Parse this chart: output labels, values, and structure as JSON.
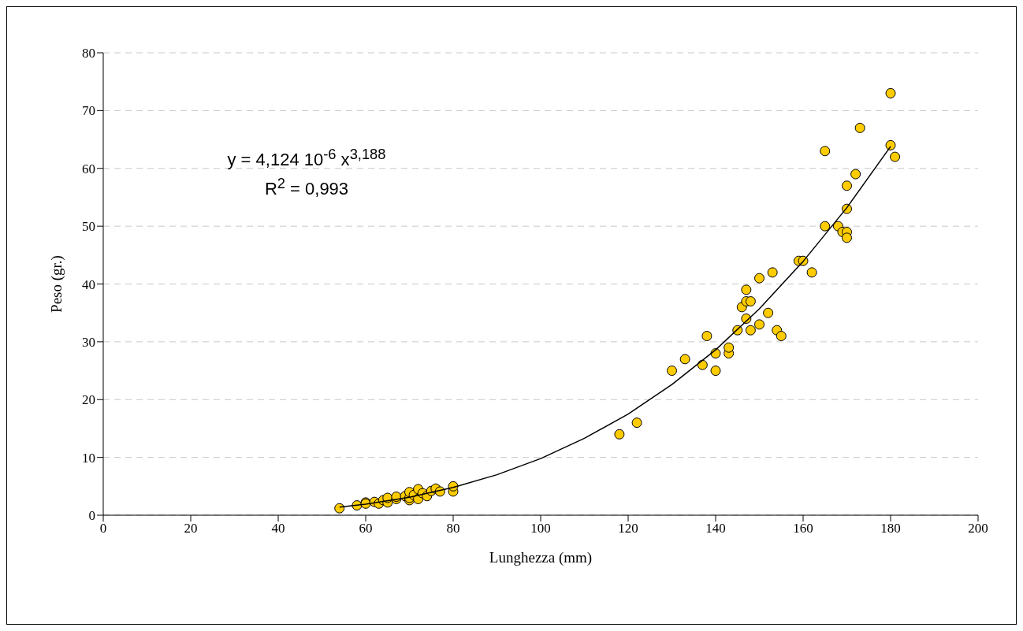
{
  "chart_data": {
    "type": "scatter",
    "xlabel": "Lunghezza (mm)",
    "ylabel": "Peso (gr.)",
    "xlim": [
      0,
      200
    ],
    "xticks": [
      0,
      20,
      40,
      60,
      80,
      100,
      120,
      140,
      160,
      180,
      200
    ],
    "ylim": [
      0,
      80
    ],
    "yticks": [
      0,
      10,
      20,
      30,
      40,
      50,
      60,
      70,
      80
    ],
    "grid": "y",
    "legend": false,
    "marker": "circle",
    "annotations": [
      "y = 4,124 10$^{-6}$ x$^{3,188}$",
      "R$^{2}$ = 0,993"
    ],
    "series": [
      {
        "color": "#ffcc00",
        "x": [
          54,
          58,
          60,
          60,
          62,
          63,
          64,
          65,
          65,
          67,
          67,
          69,
          70,
          70,
          70,
          71,
          72,
          72,
          73,
          74,
          75,
          76,
          77,
          80,
          80,
          118,
          122,
          130,
          133,
          137,
          138,
          140,
          140,
          143,
          143,
          145,
          146,
          147,
          147,
          147,
          148,
          148,
          150,
          150,
          152,
          153,
          154,
          155,
          159,
          160,
          162,
          165,
          165,
          168,
          169,
          170,
          170,
          170,
          170,
          172,
          173,
          180,
          180,
          181
        ],
        "values": [
          1.2,
          1.7,
          2.2,
          2.0,
          2.3,
          2.0,
          2.6,
          2.2,
          3.0,
          2.8,
          3.2,
          3.3,
          2.6,
          3.0,
          4.0,
          3.5,
          2.8,
          4.5,
          3.8,
          3.3,
          4.2,
          4.6,
          4.1,
          4.1,
          5.0,
          14,
          16,
          25,
          27,
          26,
          31,
          28,
          25,
          28,
          29,
          32,
          36,
          39,
          37,
          34,
          37,
          32,
          41,
          33,
          35,
          42,
          32,
          31,
          44,
          44,
          42,
          63,
          50,
          50,
          49,
          57,
          53,
          49,
          48,
          59,
          67,
          73,
          64,
          62
        ]
      },
      {
        "type": "line",
        "color": "#000000",
        "line_style": "solid",
        "marker": "none",
        "x": [
          54,
          60,
          70,
          80,
          90,
          100,
          110,
          120,
          130,
          140,
          150,
          160,
          170,
          180
        ],
        "values": [
          1.4,
          1.9,
          3.1,
          4.8,
          7.0,
          9.8,
          13.3,
          17.5,
          22.6,
          28.6,
          35.7,
          43.9,
          53.2,
          63.8
        ]
      }
    ]
  }
}
